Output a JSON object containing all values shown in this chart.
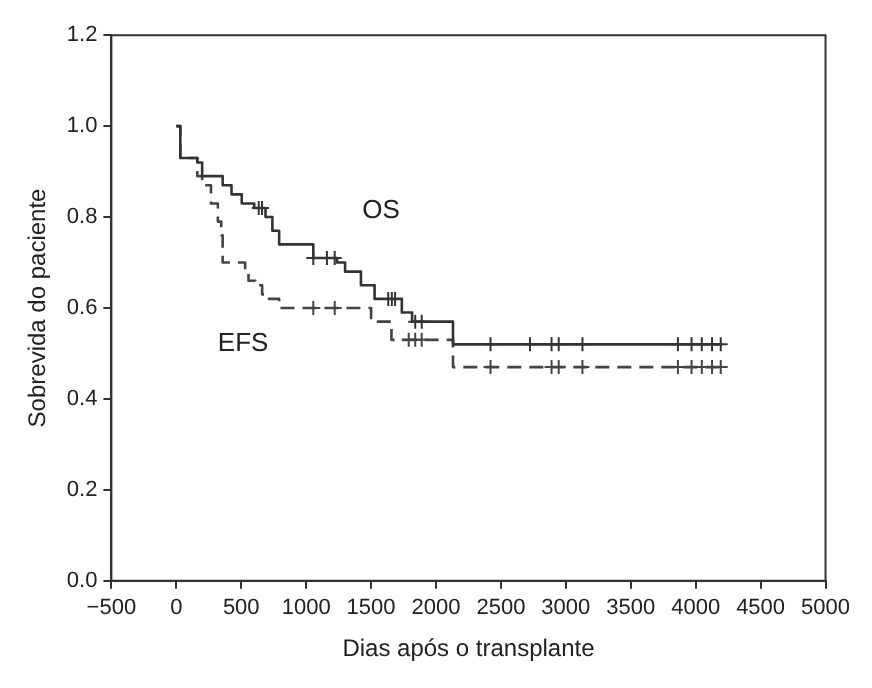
{
  "chart_data": {
    "type": "step",
    "xlabel": "Dias após o transplante",
    "ylabel": "Sobrevida do paciente",
    "xlim": [
      -500,
      5000
    ],
    "xticks": [
      {
        "value": -500,
        "label": "−500"
      },
      0,
      500,
      1000,
      1500,
      2000,
      2500,
      3000,
      3500,
      4000,
      4500,
      5000
    ],
    "ylim": [
      0,
      1.2
    ],
    "yticks": [
      {
        "value": 0,
        "label": "0.0"
      },
      0.2,
      0.4,
      0.6,
      0.8,
      {
        "value": 1,
        "label": "1.0"
      },
      1.2
    ],
    "grid": false,
    "legend": false,
    "series": [
      {
        "name": "OS",
        "color": "#333333",
        "line_style": "solid",
        "marker": "none",
        "x": [
          0,
          31,
          162,
          199,
          357,
          425,
          504,
          600,
          687,
          740,
          792,
          1055,
          1238,
          1300,
          1422,
          1527,
          1737,
          1816,
          2131,
          4200
        ],
        "values": [
          1.0,
          0.93,
          0.92,
          0.89,
          0.87,
          0.85,
          0.83,
          0.82,
          0.8,
          0.77,
          0.74,
          0.71,
          0.7,
          0.68,
          0.65,
          0.62,
          0.59,
          0.57,
          0.52,
          0.52
        ]
      },
      {
        "name": "EFS",
        "color": "#444444",
        "line_style": "dashed",
        "marker": "none",
        "x": [
          0,
          31,
          162,
          199,
          267,
          320,
          346,
          357,
          530,
          556,
          609,
          661,
          714,
          792,
          1500,
          1657,
          2131,
          4200
        ],
        "values": [
          1.0,
          0.93,
          0.89,
          0.87,
          0.83,
          0.79,
          0.76,
          0.7,
          0.68,
          0.66,
          0.65,
          0.63,
          0.62,
          0.6,
          0.57,
          0.53,
          0.47,
          0.47
        ]
      },
      {
        "type": "scatter",
        "color": "#333333",
        "marker": "cross",
        "x": [
          635,
          660,
          1055,
          1160,
          1220,
          1632,
          1660,
          1685,
          1840,
          1890,
          2420,
          2724,
          2890,
          2945,
          3128,
          3863,
          3968,
          4047,
          4126,
          4193
        ],
        "values": [
          0.82,
          0.82,
          0.71,
          0.71,
          0.71,
          0.62,
          0.62,
          0.62,
          0.57,
          0.57,
          0.52,
          0.52,
          0.52,
          0.52,
          0.52,
          0.52,
          0.52,
          0.52,
          0.52,
          0.52
        ]
      },
      {
        "type": "scatter",
        "color": "#444444",
        "marker": "cross",
        "x": [
          1055,
          1220,
          1790,
          1840,
          1890,
          2420,
          2890,
          2945,
          3128,
          3863,
          3968,
          4047,
          4126,
          4193
        ],
        "values": [
          0.6,
          0.6,
          0.53,
          0.53,
          0.53,
          0.47,
          0.47,
          0.47,
          0.47,
          0.47,
          0.47,
          0.47,
          0.47,
          0.47
        ]
      }
    ]
  }
}
